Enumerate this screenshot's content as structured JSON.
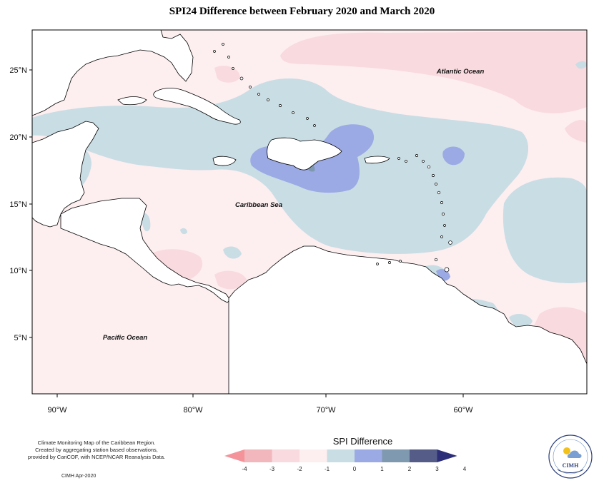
{
  "title": "SPI24 Difference between February 2020 and March 2020",
  "map": {
    "labels": [
      {
        "text": "Atlantic Ocean",
        "name": "atlantic-ocean-label"
      },
      {
        "text": "Caribbean Sea",
        "name": "caribbean-sea-label"
      },
      {
        "text": "Pacific Ocean",
        "name": "pacific-ocean-label"
      }
    ],
    "lat_ticks": [
      "25°N",
      "20°N",
      "15°N",
      "10°N",
      "5°N"
    ],
    "lon_ticks": [
      "90°W",
      "80°W",
      "70°W",
      "60°W"
    ]
  },
  "legend": {
    "title": "SPI Difference",
    "ticks": [
      "-4",
      "-3",
      "-2",
      "-1",
      "0",
      "1",
      "2",
      "3",
      "4"
    ],
    "colors": [
      "#f4939a",
      "#f2b7bd",
      "#f9dade",
      "#fdeef0",
      "#c9dde4",
      "#9ba9e5",
      "#7f99b0",
      "#555c88",
      "#2c2f77"
    ]
  },
  "notes": [
    "Climate Monitoring Map of the Caribbean Region.",
    "Created by aggregating station based observations,",
    "provided by CariCOF, with NCEP/NCAR Reanalysis Data."
  ],
  "credit": "CIMH Apr-2020",
  "logo": {
    "text": "CIMH"
  }
}
